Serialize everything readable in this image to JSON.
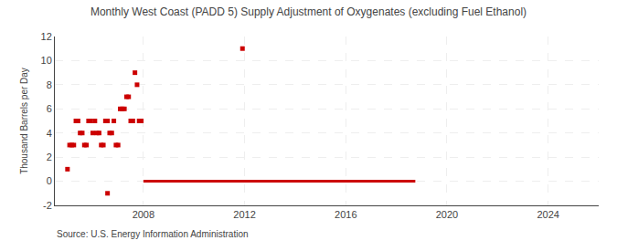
{
  "chart_data": {
    "type": "scatter",
    "title": "Monthly West Coast (PADD 5) Supply Adjustment of Oxygenates (excluding Fuel Ethanol)",
    "ylabel": "Thousand Barrels per Day",
    "annotations": [
      "Source: U.S. Energy Information Administration"
    ],
    "xlim": [
      2004.5,
      2026.0
    ],
    "xticks": [
      2008,
      2012,
      2016,
      2020,
      2024
    ],
    "ylim": [
      -2,
      12
    ],
    "yticks": [
      -2,
      0,
      2,
      4,
      6,
      8,
      10,
      12
    ],
    "grid": true,
    "series": [
      {
        "type": "scatter",
        "marker": "square",
        "color": "#cc0000",
        "x": [
          2005.0,
          2005.083,
          2005.167,
          2005.25,
          2005.333,
          2005.417,
          2005.5,
          2005.583,
          2005.667,
          2005.75,
          2005.833,
          2005.917,
          2006.0,
          2006.083,
          2006.167,
          2006.25,
          2006.333,
          2006.417,
          2006.5,
          2006.583,
          2006.667,
          2006.75,
          2006.833,
          2006.917,
          2007.0,
          2007.083,
          2007.167,
          2007.25,
          2007.333,
          2007.417,
          2007.5,
          2007.583,
          2007.667,
          2007.75,
          2007.833,
          2007.917,
          2006.583,
          2011.917
        ],
        "values": [
          1,
          3,
          3,
          3,
          5,
          5,
          4,
          4,
          3,
          3,
          5,
          5,
          4,
          5,
          4,
          4,
          3,
          3,
          5,
          5,
          4,
          4,
          5,
          3,
          3,
          6,
          6,
          6,
          7,
          7,
          5,
          5,
          9,
          8,
          5,
          5,
          -1,
          11
        ]
      },
      {
        "type": "line",
        "color": "#cc0000",
        "x": [
          2008.0,
          2018.75
        ],
        "values": [
          0,
          0
        ]
      }
    ]
  }
}
